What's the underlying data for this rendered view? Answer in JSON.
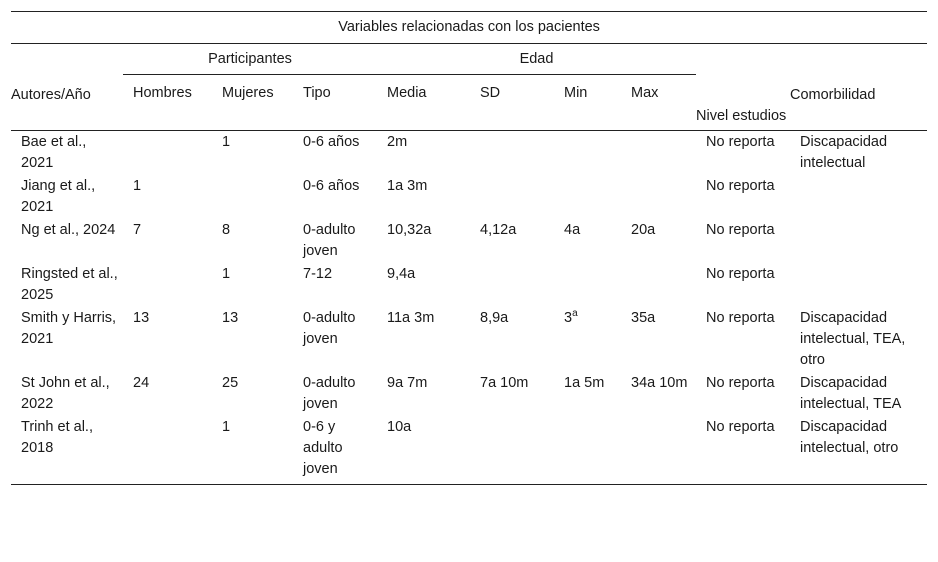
{
  "table": {
    "title": "Variables relacionadas con los pacientes",
    "groups": {
      "participantes": "Participantes",
      "edad": "Edad"
    },
    "headers": {
      "autores": "Autores/Año",
      "hombres": "Hombres",
      "mujeres": "Mujeres",
      "tipo": "Tipo",
      "media": "Media",
      "sd": "SD",
      "min": "Min",
      "max": "Max",
      "nivel": "Nivel estudios",
      "comorbilidad": "Comorbilidad"
    },
    "rows": [
      {
        "autor": "Bae et al., 2021",
        "hombres": "",
        "mujeres": "1",
        "tipo": "0-6 años",
        "media": "2m",
        "sd": "",
        "min": "",
        "max": "",
        "nivel": "No reporta",
        "comorbilidad": "Discapacidad intelectual"
      },
      {
        "autor": "Jiang et al., 2021",
        "hombres": "1",
        "mujeres": "",
        "tipo": "0-6 años",
        "media": "1a 3m",
        "sd": "",
        "min": "",
        "max": "",
        "nivel": "No reporta",
        "comorbilidad": ""
      },
      {
        "autor": "Ng et al., 2024",
        "hombres": "7",
        "mujeres": "8",
        "tipo": "0-adulto joven",
        "media": "10,32a",
        "sd": "4,12a",
        "min": "4a",
        "max": "20a",
        "nivel": "No reporta",
        "comorbilidad": ""
      },
      {
        "autor": "Ringsted et al., 2025",
        "hombres": "",
        "mujeres": "1",
        "tipo": "7-12",
        "media": "9,4a",
        "sd": "",
        "min": "",
        "max": "",
        "nivel": "No reporta",
        "comorbilidad": ""
      },
      {
        "autor": "Smith y Harris, 2021",
        "hombres": "13",
        "mujeres": "13",
        "tipo": "0-adulto joven",
        "media": "11a 3m",
        "sd": "8,9a",
        "min": "3",
        "min_sup": "a",
        "max": "35a",
        "nivel": "No reporta",
        "comorbilidad": "Discapacidad intelectual, TEA, otro"
      },
      {
        "autor": "St John et al., 2022",
        "hombres": "24",
        "mujeres": "25",
        "tipo": "0-adulto joven",
        "media": "9a 7m",
        "sd": "7a 10m",
        "min": "1a 5m",
        "max": "34a 10m",
        "nivel": "No reporta",
        "comorbilidad": "Discapacidad intelectual, TEA"
      },
      {
        "autor": "Trinh et al., 2018",
        "hombres": "",
        "mujeres": "1",
        "tipo": "0-6 y adulto joven",
        "media": "10a",
        "sd": "",
        "min": "",
        "max": "",
        "nivel": "No reporta",
        "comorbilidad": "Discapacidad intelectual, otro"
      }
    ]
  }
}
